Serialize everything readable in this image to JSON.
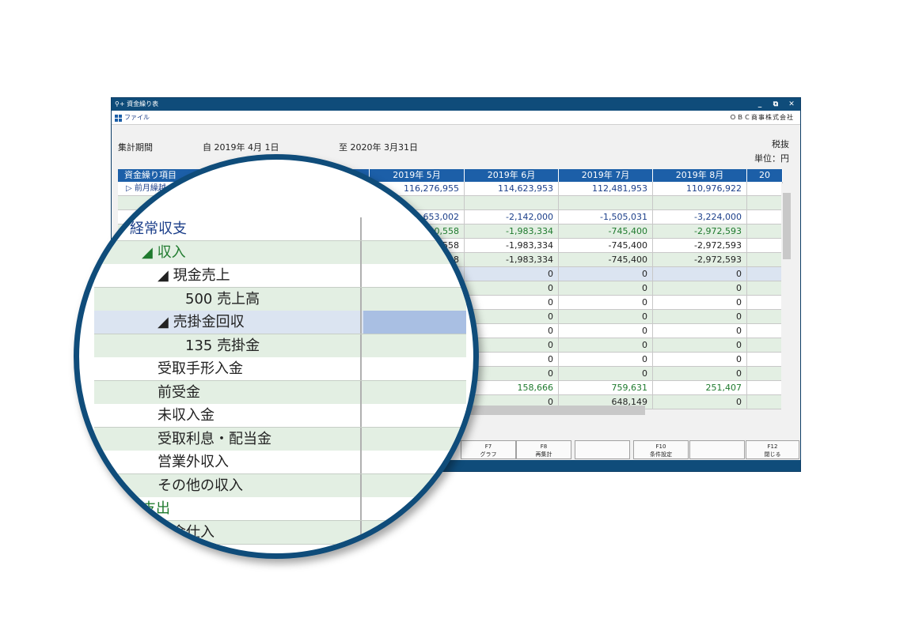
{
  "window": {
    "title": "資金繰り表",
    "search_icon": "search-plus-icon",
    "buttons": [
      "_",
      "⧉",
      "✕"
    ]
  },
  "menu": {
    "file": "ファイル",
    "company": "ＯＢＣ商事株式会社"
  },
  "conditions": {
    "period_label": "集計期間",
    "from": "自 2019年  4月 1日",
    "to": "至 2020年  3月31日",
    "tax": "税抜",
    "unit": "単位：円"
  },
  "grid": {
    "item_header": "資金繰り項目",
    "columns": [
      "2019年  5月",
      "2019年  6月",
      "2019年  7月",
      "2019年  8月",
      "20"
    ],
    "first_row_label": "前月繰越",
    "rows": [
      {
        "values": [
          "116,276,955",
          "114,623,953",
          "112,481,953",
          "110,976,922"
        ],
        "style": "white",
        "color": "#1c3f8a"
      },
      {
        "values": [
          "",
          "",
          "",
          ""
        ],
        "style": "green",
        "color": "#222"
      },
      {
        "values": [
          "653,002",
          "-2,142,000",
          "-1,505,031",
          "-3,224,000"
        ],
        "style": "white",
        "color": "#1c3f8a"
      },
      {
        "values": [
          "0,558",
          "-1,983,334",
          "-745,400",
          "-2,972,593"
        ],
        "style": "green",
        "color": "#1f7a2e"
      },
      {
        "values": [
          "558",
          "-1,983,334",
          "-745,400",
          "-2,972,593"
        ],
        "style": "white",
        "color": "#222"
      },
      {
        "values": [
          "8",
          "-1,983,334",
          "-745,400",
          "-2,972,593"
        ],
        "style": "green",
        "color": "#222"
      },
      {
        "values": [
          "",
          "0",
          "0",
          "0"
        ],
        "style": "blue",
        "color": "#222"
      },
      {
        "values": [
          "",
          "0",
          "0",
          "0"
        ],
        "style": "green",
        "color": "#222"
      },
      {
        "values": [
          "",
          "0",
          "0",
          "0"
        ],
        "style": "white",
        "color": "#222"
      },
      {
        "values": [
          "",
          "0",
          "0",
          "0"
        ],
        "style": "green",
        "color": "#222"
      },
      {
        "values": [
          "",
          "0",
          "0",
          "0"
        ],
        "style": "white",
        "color": "#222"
      },
      {
        "values": [
          "",
          "0",
          "0",
          "0"
        ],
        "style": "green",
        "color": "#222"
      },
      {
        "values": [
          "",
          "0",
          "0",
          "0"
        ],
        "style": "white",
        "color": "#222"
      },
      {
        "values": [
          "",
          "0",
          "0",
          "0"
        ],
        "style": "green",
        "color": "#222"
      },
      {
        "values": [
          "",
          "158,666",
          "759,631",
          "251,407"
        ],
        "style": "white",
        "color": "#1f7a2e"
      },
      {
        "values": [
          "",
          "0",
          "648,149",
          "0"
        ],
        "style": "green",
        "color": "#222"
      }
    ]
  },
  "fkeys": [
    {
      "key": "F7",
      "label": "グラフ"
    },
    {
      "key": "F8",
      "label": "再集計"
    },
    {
      "key": "",
      "label": ""
    },
    {
      "key": "F10",
      "label": "条件設定"
    },
    {
      "key": "",
      "label": ""
    },
    {
      "key": "F12",
      "label": "閉じる"
    }
  ],
  "magnifier": {
    "rows": [
      {
        "label": "経常収支",
        "indent": 0,
        "style": "white",
        "color": "#1c3f8a"
      },
      {
        "label": "◢ 収入",
        "indent": 1,
        "style": "green",
        "color": "#1f7a2e"
      },
      {
        "label": "◢ 現金売上",
        "indent": 2,
        "style": "white",
        "color": "#222"
      },
      {
        "label": "500  売上高",
        "indent": 3,
        "style": "green",
        "color": "#222"
      },
      {
        "label": "◢ 売掛金回収",
        "indent": 2,
        "style": "blue",
        "color": "#222"
      },
      {
        "label": "135  売掛金",
        "indent": 3,
        "style": "green",
        "color": "#222"
      },
      {
        "label": "受取手形入金",
        "indent": 2,
        "style": "white",
        "color": "#222"
      },
      {
        "label": "前受金",
        "indent": 2,
        "style": "green",
        "color": "#222"
      },
      {
        "label": "未収入金",
        "indent": 2,
        "style": "white",
        "color": "#222"
      },
      {
        "label": "受取利息・配当金",
        "indent": 2,
        "style": "green",
        "color": "#222"
      },
      {
        "label": "営業外収入",
        "indent": 2,
        "style": "white",
        "color": "#222"
      },
      {
        "label": "その他の収入",
        "indent": 2,
        "style": "green",
        "color": "#222"
      },
      {
        "label": "支出",
        "indent": 1,
        "style": "white",
        "color": "#1f7a2e"
      },
      {
        "label": "現金仕入",
        "indent": 2,
        "style": "green",
        "color": "#222"
      }
    ]
  }
}
